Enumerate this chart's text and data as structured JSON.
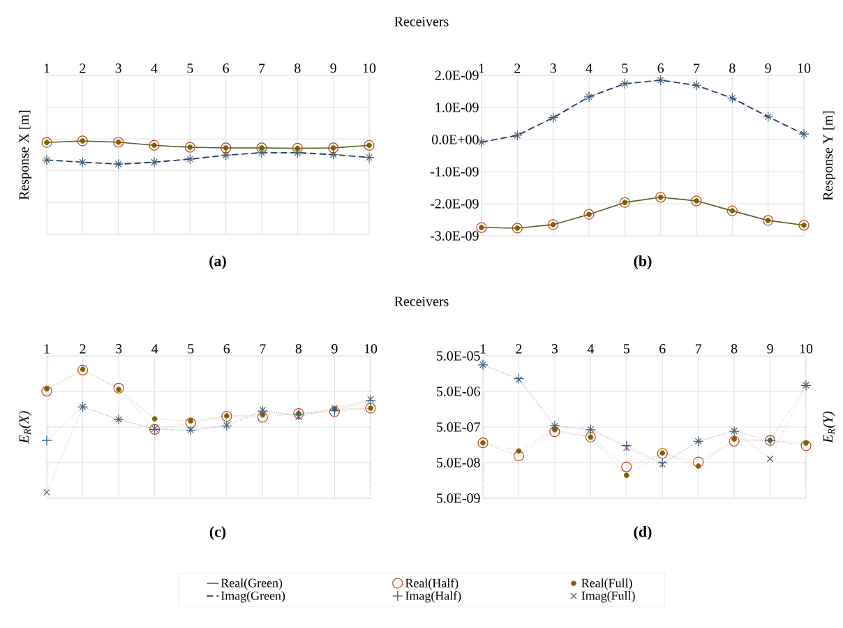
{
  "chart_data": [
    {
      "type": "line",
      "title": "(a)",
      "xlabel": "Receivers",
      "ylabel": "Response X [m]",
      "categories": [
        "1",
        "2",
        "3",
        "4",
        "5",
        "6",
        "7",
        "8",
        "9",
        "10"
      ],
      "ylim": [
        -3e-09,
        2e-09
      ],
      "yticks": [
        -3e-09,
        -2e-09,
        -1e-09,
        0,
        1e-09,
        2e-09
      ],
      "tick_labels": "x",
      "grid": true,
      "legend": "bottom",
      "series": [
        {
          "name": "Real(Green)",
          "color": "#4f6228",
          "line_style": "solid",
          "marker": "none",
          "values": [
            -1.1e-10,
            -6e-11,
            -1e-10,
            -2e-10,
            -2.6e-10,
            -2.8e-10,
            -2.8e-10,
            -2.9e-10,
            -2.8e-10,
            -2e-10
          ]
        },
        {
          "name": "Real(Half)",
          "color": "#b8471b",
          "line_style": "dotted",
          "marker": "circle",
          "values": [
            -1.1e-10,
            -6e-11,
            -1e-10,
            -2e-10,
            -2.6e-10,
            -2.8e-10,
            -2.8e-10,
            -2.9e-10,
            -2.8e-10,
            -2e-10
          ]
        },
        {
          "name": "Real(Full)",
          "color": "#7f6000",
          "line_style": "dotted",
          "marker": "dot",
          "values": [
            -1.1e-10,
            -6e-11,
            -1e-10,
            -2e-10,
            -2.6e-10,
            -2.8e-10,
            -2.8e-10,
            -2.9e-10,
            -2.8e-10,
            -2e-10
          ]
        },
        {
          "name": "Imag(Green)",
          "color": "#1f3864",
          "line_style": "dashed",
          "marker": "none",
          "values": [
            -6.6e-10,
            -7.3e-10,
            -7.9e-10,
            -7.3e-10,
            -6.3e-10,
            -5.1e-10,
            -4.3e-10,
            -4.3e-10,
            -4.9e-10,
            -5.8e-10
          ]
        },
        {
          "name": "Imag(Half)",
          "color": "#2e5f8a",
          "line_style": "dotted",
          "marker": "plus",
          "values": [
            -6.6e-10,
            -7.3e-10,
            -7.9e-10,
            -7.3e-10,
            -6.3e-10,
            -5.1e-10,
            -4.3e-10,
            -4.3e-10,
            -4.9e-10,
            -5.8e-10
          ]
        },
        {
          "name": "Imag(Full)",
          "color": "#595959",
          "line_style": "dotted",
          "marker": "cross",
          "values": [
            -6.6e-10,
            -7.3e-10,
            -7.9e-10,
            -7.3e-10,
            -6.3e-10,
            -5.1e-10,
            -4.3e-10,
            -4.3e-10,
            -4.9e-10,
            -5.8e-10
          ]
        }
      ]
    },
    {
      "type": "line",
      "title": "(b)",
      "ylabel": "Response Y [m]",
      "categories": [
        "1",
        "2",
        "3",
        "4",
        "5",
        "6",
        "7",
        "8",
        "9",
        "10"
      ],
      "ylim": [
        -3e-09,
        2e-09
      ],
      "yticks": [
        {
          "value": -3e-09,
          "label": "-3.0E-09"
        },
        {
          "value": -2e-09,
          "label": "-2.0E-09"
        },
        {
          "value": -1e-09,
          "label": "-1.0E-09"
        },
        {
          "value": 0,
          "label": "0.0E+00"
        },
        {
          "value": 1e-09,
          "label": "1.0E-09"
        },
        {
          "value": 2e-09,
          "label": "2.0E-09"
        }
      ],
      "grid": true,
      "series": [
        {
          "color": "#4f6228",
          "line_style": "solid",
          "marker": "none",
          "values": [
            -2.74e-09,
            -2.76e-09,
            -2.65e-09,
            -2.33e-09,
            -1.96e-09,
            -1.8e-09,
            -1.91e-09,
            -2.22e-09,
            -2.52e-09,
            -2.67e-09
          ]
        },
        {
          "color": "#b8471b",
          "line_style": "dotted",
          "marker": "circle",
          "values": [
            -2.74e-09,
            -2.76e-09,
            -2.65e-09,
            -2.33e-09,
            -1.96e-09,
            -1.8e-09,
            -1.91e-09,
            -2.22e-09,
            -2.52e-09,
            -2.67e-09
          ]
        },
        {
          "color": "#7f6000",
          "line_style": "dotted",
          "marker": "dot",
          "values": [
            -2.74e-09,
            -2.76e-09,
            -2.65e-09,
            -2.33e-09,
            -1.96e-09,
            -1.8e-09,
            -1.91e-09,
            -2.22e-09,
            -2.52e-09,
            -2.67e-09
          ]
        },
        {
          "color": "#1f3864",
          "line_style": "dashed",
          "marker": "none",
          "values": [
            -8e-11,
            1.3e-10,
            6.8e-10,
            1.33e-09,
            1.74e-09,
            1.85e-09,
            1.69e-09,
            1.29e-09,
            7.1e-10,
            1.7e-10
          ]
        },
        {
          "color": "#2e5f8a",
          "line_style": "dotted",
          "marker": "plus",
          "values": [
            -8e-11,
            1.3e-10,
            6.8e-10,
            1.33e-09,
            1.74e-09,
            1.85e-09,
            1.69e-09,
            1.29e-09,
            7.1e-10,
            1.7e-10
          ]
        },
        {
          "color": "#595959",
          "line_style": "dotted",
          "marker": "cross",
          "values": [
            -8e-11,
            1.3e-10,
            6.8e-10,
            1.33e-09,
            1.74e-09,
            1.85e-09,
            1.69e-09,
            1.29e-09,
            7.1e-10,
            1.7e-10
          ]
        }
      ]
    },
    {
      "type": "line",
      "title": "(c)",
      "xlabel": "Receivers",
      "ylabel": "E$_{R}$(X)",
      "categories": [
        "1",
        "2",
        "3",
        "4",
        "5",
        "6",
        "7",
        "8",
        "9",
        "10"
      ],
      "log": true,
      "ylim": [
        5e-09,
        5e-05
      ],
      "yticks": [
        5e-09,
        5e-08,
        5e-07,
        5e-06,
        5e-05
      ],
      "tick_labels": "x",
      "grid": true,
      "series": [
        {
          "color": "#b8471b",
          "line_style": "dotted",
          "marker": "circle",
          "values": [
            5.1e-06,
            2e-05,
            6.2e-06,
            4.3e-07,
            6.5e-07,
            1e-06,
            9.4e-07,
            1.2e-06,
            1.35e-06,
            1.7e-06
          ]
        },
        {
          "color": "#7f6000",
          "line_style": "dotted",
          "marker": "dot",
          "values": [
            5.9e-06,
            2.1e-05,
            5.7e-06,
            8.5e-07,
            7.4e-07,
            1.03e-06,
            1.1e-06,
            1.2e-06,
            1.6e-06,
            1.7e-06
          ]
        },
        {
          "color": "#2e5f8a",
          "line_style": "dotted",
          "marker": "plus",
          "values": [
            2.1e-07,
            1.85e-06,
            8.2e-07,
            4.3e-07,
            4e-07,
            5.4e-07,
            1.4e-06,
            1.1e-06,
            1.45e-06,
            2.8e-06
          ]
        },
        {
          "color": "#595959",
          "line_style": "dotted",
          "marker": "cross",
          "values": [
            7.3e-09,
            1.85e-06,
            8.2e-07,
            4.5e-07,
            4.1e-07,
            5.6e-07,
            1.5e-06,
            9.6e-07,
            1.7e-06,
            3e-06
          ]
        }
      ]
    },
    {
      "type": "line",
      "title": "(d)",
      "ylabel": "E$_{R}$(Y)",
      "categories": [
        "1",
        "2",
        "3",
        "4",
        "5",
        "6",
        "7",
        "8",
        "9",
        "10"
      ],
      "log": true,
      "ylim": [
        5e-09,
        5e-05
      ],
      "yticks": [
        {
          "value": 5e-09,
          "label": "5.0E-09"
        },
        {
          "value": 5e-08,
          "label": "5.0E-08"
        },
        {
          "value": 5e-07,
          "label": "5.0E-07"
        },
        {
          "value": 5e-06,
          "label": "5.0E-06"
        },
        {
          "value": 5e-05,
          "label": "5.0E-05"
        }
      ],
      "grid": true,
      "series": [
        {
          "color": "#b8471b",
          "line_style": "dotted",
          "marker": "circle",
          "values": [
            1.8e-07,
            7.7e-08,
            3.7e-07,
            2.6e-07,
            3.8e-08,
            9.1e-08,
            5.2e-08,
            2e-07,
            2.1e-07,
            1.5e-07
          ]
        },
        {
          "color": "#7f6000",
          "line_style": "dotted",
          "marker": "dot",
          "values": [
            1.8e-07,
            1.06e-07,
            4.2e-07,
            2.6e-07,
            2.2e-08,
            9.3e-08,
            4e-08,
            2.3e-07,
            2.1e-07,
            1.77e-07
          ]
        },
        {
          "color": "#2e5f8a",
          "line_style": "dotted",
          "marker": "plus",
          "values": [
            2.8e-05,
            1.15e-05,
            5.5e-07,
            4.2e-07,
            1.5e-07,
            4.9e-08,
            2e-07,
            3.8e-07,
            2.1e-07,
            7.4e-06
          ]
        },
        {
          "color": "#595959",
          "line_style": "dotted",
          "marker": "cross",
          "values": [
            2.8e-05,
            1.08e-05,
            5.3e-07,
            4.3e-07,
            1.3e-07,
            4.5e-08,
            2e-07,
            3.9e-07,
            6.4e-08,
            7.5e-06
          ]
        }
      ]
    }
  ]
}
